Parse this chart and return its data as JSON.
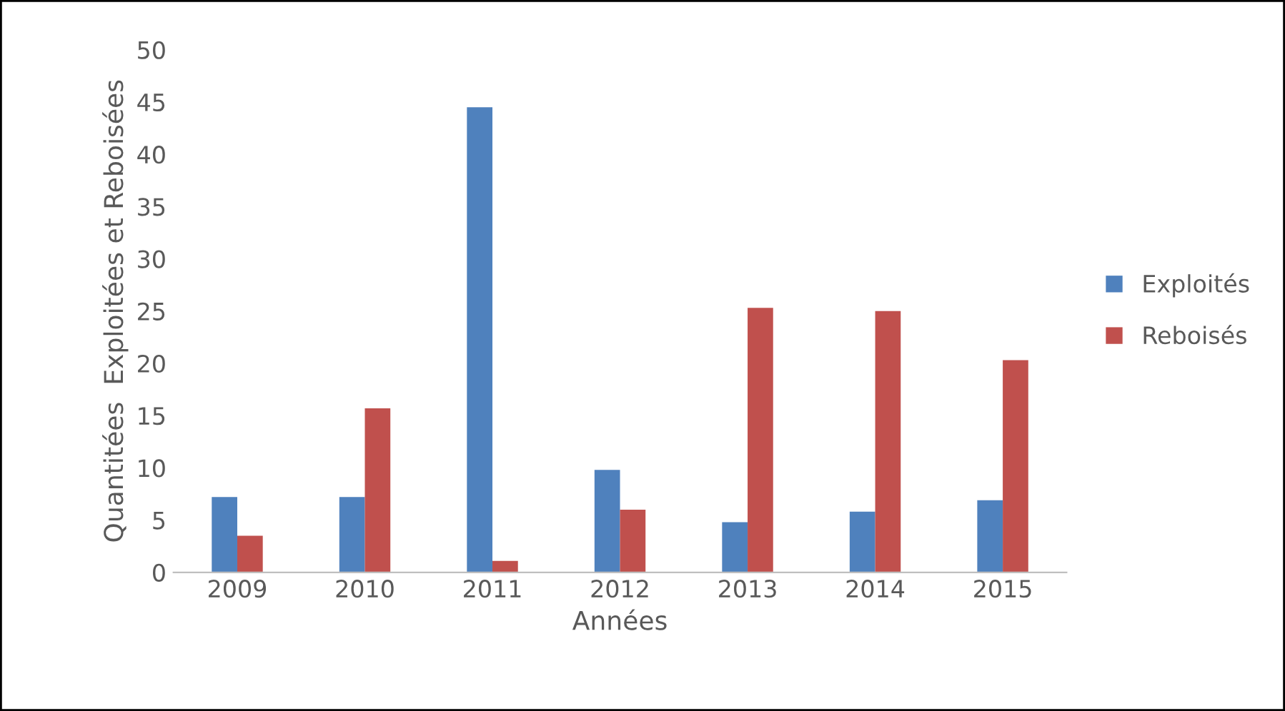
{
  "chart_data": {
    "type": "bar",
    "xlabel": "Années",
    "ylabel": "Quantitées  Exploitées et Reboisées",
    "categories": [
      "2009",
      "2010",
      "2011",
      "2012",
      "2013",
      "2014",
      "2015"
    ],
    "series": [
      {
        "name": "Exploités",
        "color": "#4f81bd",
        "values": [
          7.2,
          7.2,
          44.5,
          9.8,
          4.8,
          5.8,
          6.9
        ]
      },
      {
        "name": "Reboisés",
        "color": "#c0504d",
        "values": [
          3.5,
          15.7,
          1.1,
          6.0,
          25.3,
          25.0,
          20.3
        ]
      }
    ],
    "ylim": [
      0,
      50
    ],
    "yticks": [
      0,
      5,
      10,
      15,
      20,
      25,
      30,
      35,
      40,
      45,
      50
    ],
    "grid": false,
    "legend": "right"
  }
}
